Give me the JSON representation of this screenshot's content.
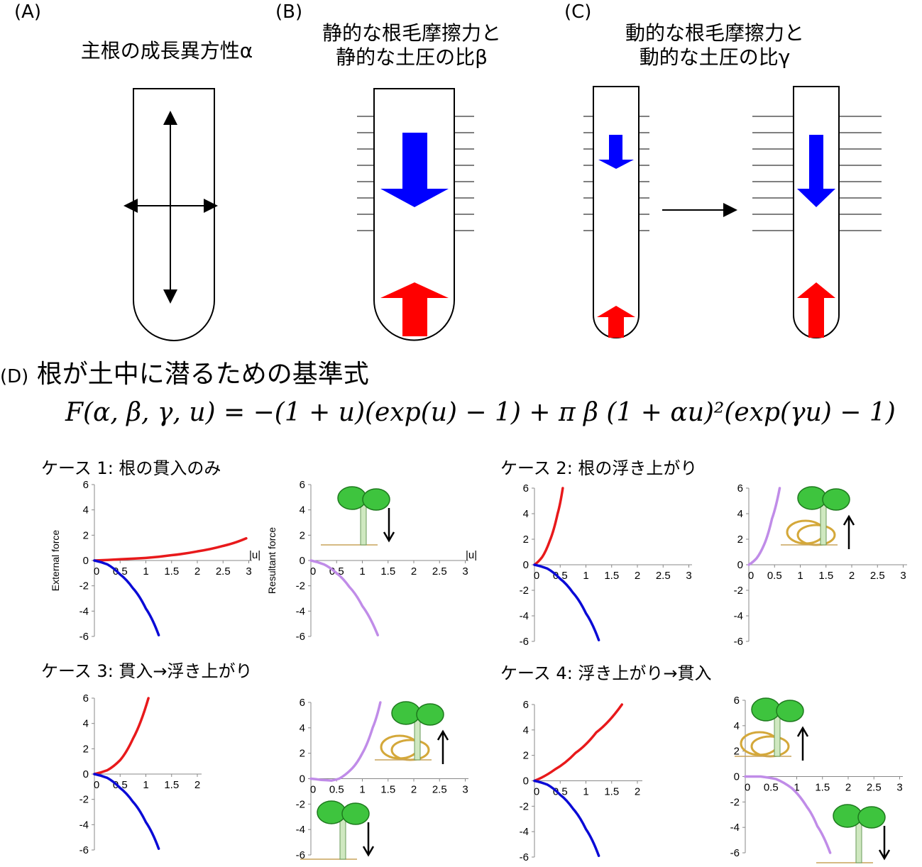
{
  "panel_a": {
    "label": "(A)",
    "title": "主根の成長異方性α"
  },
  "panel_b": {
    "label": "(B)",
    "title_line1": "静的な根毛摩擦力と",
    "title_line2": "静的な土圧の比β"
  },
  "panel_c": {
    "label": "(C)",
    "title_line1": "動的な根毛摩擦力と",
    "title_line2": "動的な土圧の比γ"
  },
  "panel_d": {
    "label": "(D)",
    "title": "根が土中に潜るための基準式",
    "formula": "F(α, β, γ, u) = −(1 + u)(exp(u) − 1) + π β (1 + αu)²(exp(γu) − 1)"
  },
  "cases": [
    {
      "title": "ケース 1: 根の貫入のみ"
    },
    {
      "title": "ケース 2: 根の浮き上がり"
    },
    {
      "title": "ケース 3: 貫入→浮き上がり"
    },
    {
      "title": "ケース 4: 浮き上がり→貫入"
    }
  ],
  "axis_labels": {
    "external": "External force",
    "resultant": "Resultant force",
    "u": "|u|"
  },
  "colors": {
    "red": "#e8191b",
    "blue": "#0a0ad6",
    "purple": "#c08ce8",
    "arrow_blue": "#0000ff",
    "arrow_red": "#ff0000"
  },
  "chart_data": [
    {
      "type": "line",
      "case": 1,
      "ylabel": "External force",
      "xlabel": "|u|",
      "xlim": [
        0,
        3
      ],
      "ylim": [
        -6,
        6
      ],
      "series": [
        {
          "color": "red",
          "x": [
            0,
            0.5,
            1,
            1.5,
            2,
            2.5,
            2.95
          ],
          "y": [
            0,
            0.1,
            0.2,
            0.42,
            0.72,
            1.15,
            1.75
          ]
        },
        {
          "color": "blue",
          "x": [
            0,
            0.25,
            0.5,
            0.75,
            1,
            1.25
          ],
          "y": [
            0,
            -0.3,
            -1.1,
            -2.2,
            -3.8,
            -5.9
          ]
        }
      ]
    },
    {
      "type": "line",
      "case": 1,
      "ylabel": "Resultant force",
      "xlabel": "|u|",
      "xlim": [
        0,
        3
      ],
      "ylim": [
        -6,
        6
      ],
      "series": [
        {
          "color": "purple",
          "x": [
            0,
            0.25,
            0.5,
            0.75,
            1,
            1.3
          ],
          "y": [
            0,
            -0.3,
            -1.0,
            -2.1,
            -3.6,
            -5.9
          ]
        }
      ]
    },
    {
      "type": "line",
      "case": 2,
      "xlim": [
        0,
        3
      ],
      "ylim": [
        -6,
        6
      ],
      "series": [
        {
          "color": "red",
          "x": [
            0,
            0.15,
            0.3,
            0.45,
            0.55
          ],
          "y": [
            0,
            0.6,
            1.9,
            4.0,
            6.0
          ]
        },
        {
          "color": "blue",
          "x": [
            0,
            0.25,
            0.5,
            0.75,
            1,
            1.25
          ],
          "y": [
            0,
            -0.3,
            -1.1,
            -2.2,
            -3.8,
            -5.9
          ]
        }
      ]
    },
    {
      "type": "line",
      "case": 2,
      "xlim": [
        0,
        3
      ],
      "ylim": [
        -6,
        6
      ],
      "series": [
        {
          "color": "purple",
          "x": [
            0,
            0.15,
            0.3,
            0.45,
            0.6
          ],
          "y": [
            0,
            0.5,
            1.6,
            3.6,
            6.0
          ]
        }
      ]
    },
    {
      "type": "line",
      "case": 3,
      "xlim": [
        0,
        2
      ],
      "ylim": [
        -6,
        6
      ],
      "series": [
        {
          "color": "red",
          "x": [
            0,
            0.25,
            0.5,
            0.75,
            1.05
          ],
          "y": [
            0,
            0.3,
            1.1,
            2.8,
            6.0
          ]
        },
        {
          "color": "blue",
          "x": [
            0,
            0.25,
            0.5,
            0.75,
            1,
            1.25
          ],
          "y": [
            0,
            -0.3,
            -1.1,
            -2.2,
            -3.8,
            -5.9
          ]
        }
      ]
    },
    {
      "type": "line",
      "case": 3,
      "xlim": [
        0,
        3
      ],
      "ylim": [
        -6,
        6
      ],
      "series": [
        {
          "color": "purple",
          "x": [
            0,
            0.2,
            0.4,
            0.55,
            0.8,
            1.0,
            1.2,
            1.35
          ],
          "y": [
            0,
            -0.1,
            -0.15,
            0,
            0.8,
            2.0,
            4.0,
            6.0
          ]
        }
      ]
    },
    {
      "type": "line",
      "case": 4,
      "xlim": [
        0,
        2
      ],
      "ylim": [
        -6,
        6
      ],
      "series": [
        {
          "color": "red",
          "x": [
            0,
            0.4,
            0.8,
            1.2,
            1.7
          ],
          "y": [
            0,
            0.9,
            2.2,
            3.8,
            6.0
          ]
        },
        {
          "color": "blue",
          "x": [
            0,
            0.25,
            0.5,
            0.75,
            1,
            1.25
          ],
          "y": [
            0,
            -0.3,
            -1.1,
            -2.2,
            -3.8,
            -5.9
          ]
        }
      ]
    },
    {
      "type": "line",
      "case": 4,
      "xlim": [
        0,
        3
      ],
      "ylim": [
        -6,
        6
      ],
      "series": [
        {
          "color": "purple",
          "x": [
            0,
            0.3,
            0.6,
            0.9,
            1.2,
            1.4,
            1.65
          ],
          "y": [
            0,
            0,
            -0.2,
            -0.9,
            -2.4,
            -3.9,
            -6.0
          ]
        }
      ]
    }
  ]
}
